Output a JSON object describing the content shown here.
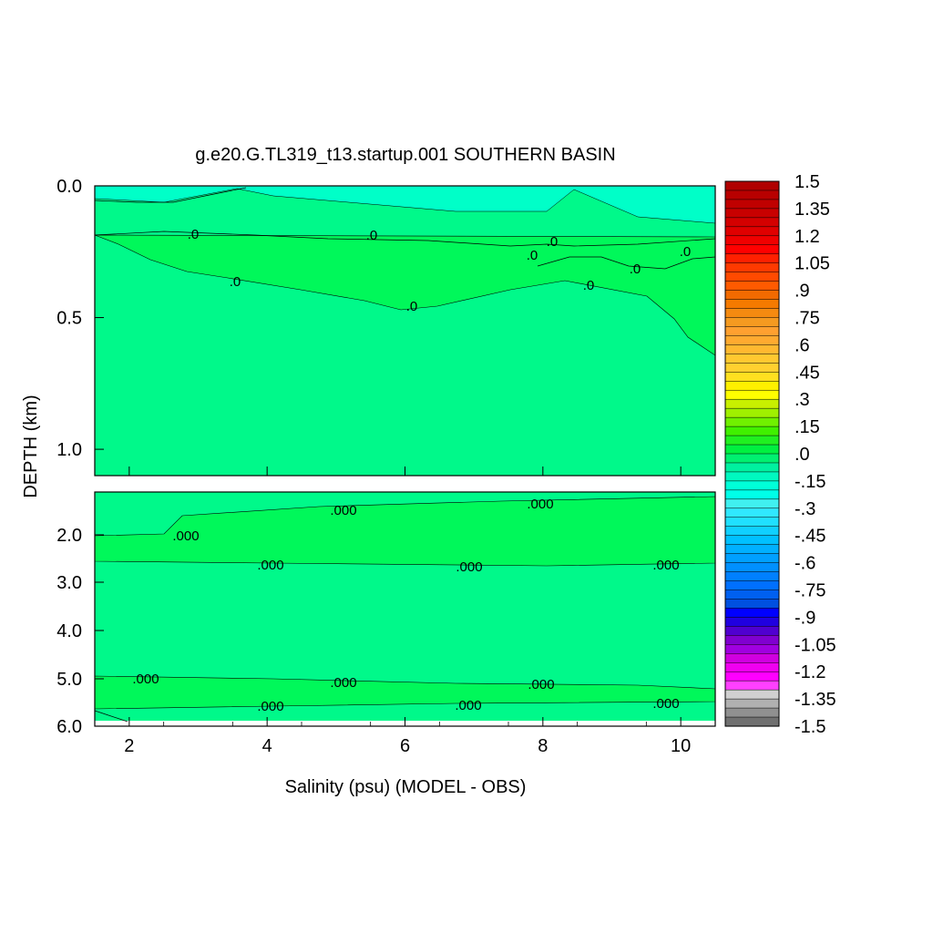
{
  "chart_data": {
    "type": "heatmap",
    "title": "g.e20.G.TL319_t13.startup.001 SOUTHERN BASIN",
    "xlabel": "Salinity (psu) (MODEL - OBS)",
    "ylabel": "DEPTH (km)",
    "xlim": [
      1.5,
      10.5
    ],
    "x_ticks": [
      "2",
      "4",
      "6",
      "8",
      "10"
    ],
    "x_tick_values": [
      2,
      4,
      6,
      8,
      10
    ],
    "upper_panel": {
      "ylim": [
        0.0,
        1.1
      ],
      "y_ticks": [
        "0.0",
        "0.5",
        "1.0"
      ],
      "y_tick_values": [
        0.0,
        0.5,
        1.0
      ]
    },
    "lower_panel": {
      "ylim": [
        1.1,
        6.0
      ],
      "y_ticks": [
        "2.0",
        "3.0",
        "4.0",
        "5.0",
        "6.0"
      ],
      "y_tick_values": [
        2.0,
        3.0,
        4.0,
        5.0,
        6.0
      ]
    },
    "colorbar": {
      "labels": [
        "1.5",
        "1.35",
        "1.2",
        "1.05",
        ".9",
        ".75",
        ".6",
        ".45",
        ".3",
        ".15",
        ".0",
        "-.15",
        "-.3",
        "-.45",
        "-.6",
        "-.75",
        "-.9",
        "-1.05",
        "-1.2",
        "-1.35",
        "-1.5"
      ],
      "colors": [
        "#b00000",
        "#b80000",
        "#c00000",
        "#c80000",
        "#d40000",
        "#e00000",
        "#f00000",
        "#ff0000",
        "#ff2000",
        "#ff3a00",
        "#ff4a00",
        "#ff5a00",
        "#f26a00",
        "#f57a00",
        "#f58a10",
        "#f59a20",
        "#ffa030",
        "#ffaa30",
        "#ffb830",
        "#ffc830",
        "#ffd030",
        "#ffe020",
        "#fff000",
        "#ffff00",
        "#c8f000",
        "#a0f000",
        "#70f000",
        "#40f000",
        "#20f020",
        "#00f040",
        "#00f070",
        "#00f0a0",
        "#00f8c0",
        "#00ffd8",
        "#00ffe8",
        "#40f0f0",
        "#30e8ff",
        "#20e0ff",
        "#10d0ff",
        "#00c0ff",
        "#00b0ff",
        "#00a0ff",
        "#0090ff",
        "#0080ff",
        "#0070ff",
        "#0060f0",
        "#0050e0",
        "#0000ff",
        "#2000e0",
        "#5000d0",
        "#8000d0",
        "#a000e0",
        "#d000e0",
        "#f000f0",
        "#ff00ff",
        "#ff40ff",
        "#d0d0d0",
        "#b0b0b0",
        "#909090",
        "#707070"
      ]
    },
    "contour_labels_upper": [
      ".0",
      ".0",
      ".0",
      ".0",
      ".0",
      ".0",
      ".0",
      ".0",
      ".0"
    ],
    "contour_labels_lower": [
      ".000",
      ".000",
      ".000",
      ".000",
      ".000",
      ".000",
      ".000",
      ".000",
      ".000",
      ".000",
      ".000",
      ".000",
      ".000"
    ],
    "fill_colors": {
      "neutral": "#00f98a",
      "positive": "#00f85a",
      "negative": "#00ffc8"
    }
  }
}
